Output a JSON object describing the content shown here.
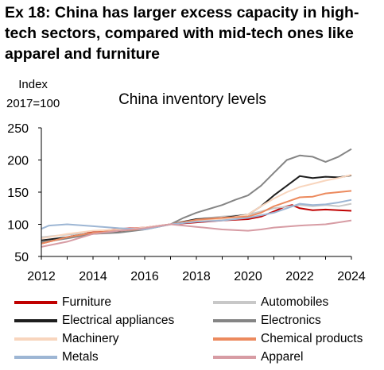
{
  "title": "Ex 18: China has larger excess capacity in high-tech sectors, compared with mid-tech ones like apparel and furniture",
  "chart_data": {
    "type": "line",
    "title": "China inventory levels",
    "ylabel_line1": "Index",
    "ylabel_line2": "2017=100",
    "xlabel": "",
    "ylim": [
      50,
      250
    ],
    "xlim": [
      2012,
      2024
    ],
    "yticks": [
      "50",
      "100",
      "150",
      "200",
      "250"
    ],
    "xticks": [
      "2012",
      "2014",
      "2016",
      "2018",
      "2020",
      "2022",
      "2024"
    ],
    "grid": false,
    "legend_position": "bottom",
    "series": [
      {
        "name": "Furniture",
        "color": "#c00000",
        "x": [
          2012,
          2013,
          2014,
          2015,
          2016,
          2017,
          2018,
          2019,
          2020,
          2020.5,
          2021,
          2021.4,
          2021.7,
          2022,
          2022.5,
          2023,
          2023.5,
          2024
        ],
        "values": [
          70,
          80,
          88,
          93,
          95,
          100,
          103,
          106,
          108,
          112,
          120,
          127,
          130,
          125,
          122,
          123,
          122,
          121
        ]
      },
      {
        "name": "Automobiles",
        "color": "#c8c8c8",
        "x": [
          2012,
          2013,
          2014,
          2015,
          2016,
          2017,
          2018,
          2019,
          2020,
          2021,
          2022,
          2022.5,
          2023,
          2023.5,
          2024
        ],
        "values": [
          80,
          84,
          86,
          88,
          92,
          100,
          108,
          112,
          115,
          125,
          130,
          128,
          130,
          128,
          132
        ]
      },
      {
        "name": "Electrical appliances",
        "color": "#1e1e1e",
        "x": [
          2012,
          2013,
          2014,
          2015,
          2016,
          2017,
          2018,
          2019,
          2020,
          2020.5,
          2021,
          2021.5,
          2022,
          2022.5,
          2023,
          2023.5,
          2024
        ],
        "values": [
          75,
          80,
          87,
          89,
          94,
          100,
          108,
          110,
          115,
          128,
          145,
          160,
          175,
          172,
          174,
          173,
          176
        ]
      },
      {
        "name": "Electronics",
        "color": "#858585",
        "x": [
          2012,
          2013,
          2014,
          2015,
          2016,
          2017,
          2017.5,
          2018,
          2019,
          2019.5,
          2020,
          2020.5,
          2021,
          2021.5,
          2022,
          2022.5,
          2023,
          2023.5,
          2024
        ],
        "values": [
          72,
          78,
          85,
          87,
          92,
          100,
          110,
          118,
          130,
          138,
          145,
          160,
          180,
          200,
          207,
          205,
          197,
          205,
          217
        ]
      },
      {
        "name": "Machinery",
        "color": "#f8d5bd",
        "x": [
          2012,
          2013,
          2014,
          2015,
          2016,
          2017,
          2018,
          2019,
          2020,
          2020.5,
          2021,
          2021.5,
          2022,
          2022.5,
          2023,
          2023.5,
          2024
        ],
        "values": [
          78,
          85,
          90,
          92,
          95,
          100,
          105,
          108,
          115,
          128,
          140,
          150,
          158,
          163,
          168,
          172,
          177
        ]
      },
      {
        "name": "Chemical products",
        "color": "#ec8a5e",
        "x": [
          2012,
          2013,
          2014,
          2015,
          2016,
          2017,
          2018,
          2019,
          2020,
          2020.5,
          2021,
          2021.5,
          2022,
          2022.5,
          2023,
          2023.5,
          2024
        ],
        "values": [
          70,
          80,
          87,
          90,
          93,
          100,
          107,
          110,
          112,
          118,
          128,
          135,
          142,
          143,
          148,
          150,
          152
        ]
      },
      {
        "name": "Metals",
        "color": "#9db6d4",
        "x": [
          2012,
          2012.3,
          2013,
          2014,
          2015,
          2016,
          2017,
          2018,
          2019,
          2020,
          2021,
          2021.5,
          2022,
          2022.5,
          2023,
          2023.5,
          2024
        ],
        "values": [
          93,
          98,
          100,
          97,
          94,
          92,
          100,
          104,
          106,
          110,
          118,
          125,
          132,
          130,
          131,
          134,
          138
        ]
      },
      {
        "name": "Apparel",
        "color": "#d79ca4",
        "x": [
          2012,
          2013,
          2014,
          2015,
          2016,
          2017,
          2018,
          2019,
          2020,
          2020.5,
          2021,
          2022,
          2023,
          2023.5,
          2024
        ],
        "values": [
          65,
          73,
          85,
          90,
          94,
          100,
          96,
          92,
          90,
          92,
          95,
          98,
          100,
          103,
          106
        ]
      }
    ]
  }
}
